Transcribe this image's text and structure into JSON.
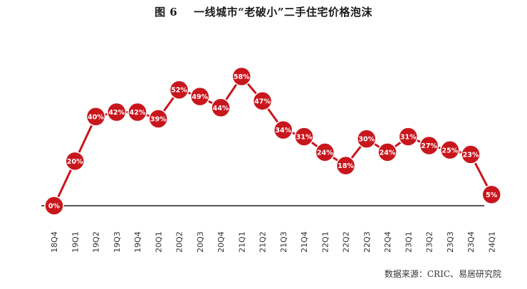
{
  "chart_data": {
    "type": "line",
    "title_figure": "图 6",
    "title_text": "一线城市“老破小”二手住宅价格泡沫",
    "categories": [
      "18Q4",
      "19Q1",
      "19Q2",
      "19Q3",
      "19Q4",
      "20Q1",
      "20Q2",
      "20Q3",
      "20Q4",
      "21Q1",
      "21Q2",
      "21Q3",
      "21Q4",
      "22Q1",
      "22Q2",
      "22Q3",
      "22Q4",
      "23Q1",
      "23Q2",
      "23Q3",
      "23Q4",
      "24Q1"
    ],
    "series": [
      {
        "values": [
          0,
          20,
          40,
          42,
          42,
          39,
          52,
          49,
          44,
          58,
          47,
          34,
          31,
          24,
          18,
          30,
          24,
          31,
          27,
          25,
          23,
          5
        ]
      }
    ],
    "value_suffix": "%",
    "ylim": [
      0,
      60
    ],
    "grid": false,
    "legend": "none",
    "colors": {
      "line": "#c8161d",
      "marker": "#c8161d",
      "baseline": "#555555",
      "label_text": "#ffffff",
      "tick_text": "#333333"
    }
  },
  "source": "数据来源：CRIC、易居研究院"
}
